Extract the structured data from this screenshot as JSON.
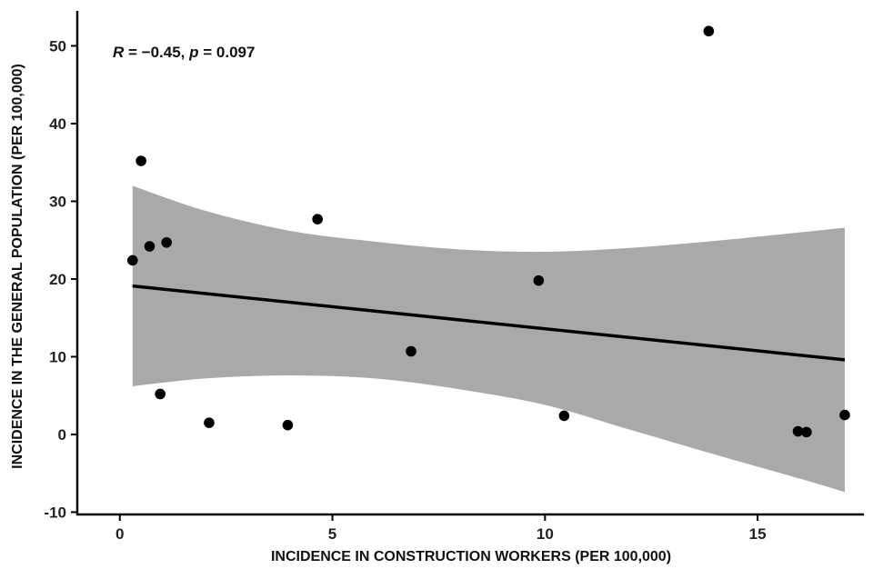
{
  "chart_data": {
    "type": "scatter",
    "title": "",
    "xlabel": "INCIDENCE IN CONSTRUCTION WORKERS (PER 100,000)",
    "ylabel": "INCIDENCE IN THE GENERAL POPULATION (PER 100,000)",
    "xlim": [
      -1.0,
      17.5
    ],
    "ylim": [
      -10.3,
      54.5
    ],
    "x_ticks": [
      0,
      5,
      10,
      15
    ],
    "y_ticks": [
      -10,
      0,
      10,
      20,
      30,
      40,
      50
    ],
    "grid": false,
    "legend": "none",
    "annotation": {
      "r_symbol": "R",
      "r_value": " = −0.45, ",
      "p_symbol": "p",
      "p_value": " = 0.097"
    },
    "points": {
      "x": [
        0.3,
        0.5,
        0.7,
        0.95,
        1.1,
        2.1,
        3.95,
        4.65,
        6.85,
        9.85,
        10.45,
        13.85,
        15.95,
        16.15,
        17.05
      ],
      "y": [
        22.4,
        35.2,
        24.2,
        5.2,
        24.7,
        1.5,
        1.2,
        27.7,
        10.7,
        19.8,
        2.4,
        51.9,
        0.4,
        0.3,
        2.5
      ]
    },
    "regression": {
      "x_start": 0.3,
      "x_end": 17.05,
      "y_start": 19.1,
      "y_end": 9.6
    },
    "confidence_band": {
      "x": [
        0.3,
        2,
        4,
        6,
        8,
        10,
        12,
        14,
        16,
        17.05
      ],
      "lower": [
        6.2,
        7.2,
        7.6,
        7.2,
        5.8,
        3.8,
        0.6,
        -2.6,
        -5.7,
        -7.4
      ],
      "upper": [
        32.0,
        28.8,
        26.2,
        24.8,
        23.8,
        23.5,
        24.0,
        24.9,
        26.0,
        26.6
      ]
    },
    "colors": {
      "points": "#000000",
      "line": "#000000",
      "band": "#a8a9a8",
      "axis": "#000000"
    }
  }
}
